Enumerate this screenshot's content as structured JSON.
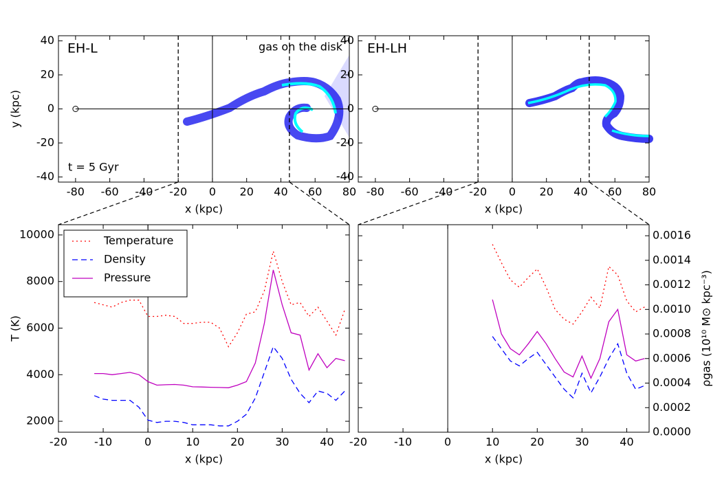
{
  "chart_data": [
    {
      "type": "scatter",
      "title": "EH-L",
      "annotation": "gas on the disk",
      "time_label": "t = 5 Gyr",
      "xlabel": "x (kpc)",
      "ylabel": "y (kpc)",
      "xlim": [
        -90,
        80
      ],
      "ylim": [
        -43,
        43
      ],
      "xticks": [
        -80,
        -60,
        -40,
        -20,
        0,
        20,
        40,
        60,
        80
      ],
      "yticks": [
        -40,
        -20,
        0,
        20,
        40
      ],
      "vlines": [
        -20,
        45
      ],
      "marker": [
        -80,
        0
      ]
    },
    {
      "type": "scatter",
      "title": "EH-LH",
      "xlabel": "x (kpc)",
      "xlim": [
        -90,
        80
      ],
      "ylim": [
        -43,
        43
      ],
      "xticks": [
        -80,
        -60,
        -40,
        -20,
        0,
        20,
        40,
        60,
        80
      ],
      "yticks": [
        -40,
        -20,
        0,
        20,
        40
      ],
      "vlines": [
        -20,
        45
      ],
      "marker": [
        -80,
        0
      ]
    },
    {
      "type": "line",
      "xlabel": "x (kpc)",
      "ylabel": "T (K)",
      "legend": "upper left",
      "xlim": [
        -20,
        45
      ],
      "ylim": [
        1530,
        10440
      ],
      "xticks": [
        -20,
        -10,
        0,
        10,
        20,
        30,
        40
      ],
      "yticks": [
        2000,
        4000,
        6000,
        8000,
        10000
      ],
      "x": [
        -12,
        -10,
        -8,
        -6,
        -4,
        -2,
        0,
        2,
        4,
        6,
        8,
        10,
        12,
        14,
        16,
        18,
        20,
        22,
        24,
        26,
        28,
        30,
        32,
        34,
        36,
        38,
        40,
        42,
        44
      ],
      "series": [
        {
          "name": "Temperature",
          "color": "#ff0000",
          "style": "dotted",
          "values": [
            7100,
            7000,
            6900,
            7100,
            7200,
            7200,
            6500,
            6500,
            6550,
            6500,
            6200,
            6200,
            6250,
            6250,
            6000,
            5200,
            5800,
            6600,
            6700,
            7600,
            9300,
            8000,
            7000,
            7100,
            6500,
            6900,
            6300,
            5700,
            6800
          ]
        },
        {
          "name": "Density",
          "color": "#0000ff",
          "style": "dashed",
          "values": [
            3100,
            2950,
            2900,
            2900,
            2900,
            2600,
            2050,
            1950,
            2000,
            2000,
            1950,
            1850,
            1850,
            1850,
            1800,
            1800,
            2000,
            2300,
            3000,
            4100,
            5200,
            4700,
            3800,
            3200,
            2800,
            3300,
            3200,
            2900,
            3300
          ]
        },
        {
          "name": "Pressure",
          "color": "#bf00bf",
          "style": "solid",
          "values": [
            4050,
            4050,
            4000,
            4050,
            4100,
            4000,
            3700,
            3550,
            3570,
            3580,
            3550,
            3480,
            3470,
            3460,
            3450,
            3440,
            3550,
            3700,
            4500,
            6200,
            8500,
            7000,
            5800,
            5700,
            4200,
            4900,
            4300,
            4700,
            4600
          ]
        }
      ]
    },
    {
      "type": "line",
      "xlabel": "x (kpc)",
      "y2label": "ρgas (10¹⁰ M⊙ kpc⁻³)",
      "xlim": [
        -20,
        45
      ],
      "y2lim": [
        0,
        0.00169
      ],
      "xticks": [
        -20,
        -10,
        0,
        10,
        20,
        30,
        40
      ],
      "y2ticks": [
        {
          "value": 0,
          "label": "0.0000"
        },
        {
          "value": 0.0002,
          "label": "0.0002"
        },
        {
          "value": 0.0004,
          "label": "0.0004"
        },
        {
          "value": 0.0006,
          "label": "0.0006"
        },
        {
          "value": 0.0008,
          "label": "0.0008"
        },
        {
          "value": 0.001,
          "label": "0.0010"
        },
        {
          "value": 0.0012,
          "label": "0.0012"
        },
        {
          "value": 0.0014,
          "label": "0.0014"
        },
        {
          "value": 0.0016,
          "label": "0.0016"
        }
      ],
      "x": [
        10,
        12,
        14,
        16,
        18,
        20,
        22,
        24,
        26,
        28,
        30,
        32,
        34,
        36,
        38,
        40,
        42,
        44
      ],
      "series": [
        {
          "color": "#ff0000",
          "style": "dotted",
          "axis": "y2",
          "values": [
            0.00153,
            0.00138,
            0.00124,
            0.00118,
            0.00126,
            0.00133,
            0.00118,
            0.001,
            0.00092,
            0.00088,
            0.00098,
            0.0011,
            0.00101,
            0.00135,
            0.00128,
            0.00107,
            0.00098,
            0.00102
          ]
        },
        {
          "color": "#0000ff",
          "style": "dashed",
          "axis": "y2",
          "values": [
            0.00078,
            0.00068,
            0.00058,
            0.00054,
            0.0006,
            0.00065,
            0.00055,
            0.00045,
            0.00035,
            0.00028,
            0.00048,
            0.00032,
            0.00045,
            0.0006,
            0.00072,
            0.00048,
            0.00035,
            0.00038
          ]
        },
        {
          "color": "#bf00bf",
          "style": "solid",
          "axis": "y2",
          "values": [
            0.00108,
            0.0008,
            0.00068,
            0.00063,
            0.00072,
            0.00082,
            0.00072,
            0.0006,
            0.00049,
            0.00045,
            0.00062,
            0.00044,
            0.0006,
            0.0009,
            0.001,
            0.00063,
            0.00058,
            0.0006
          ]
        }
      ]
    }
  ]
}
